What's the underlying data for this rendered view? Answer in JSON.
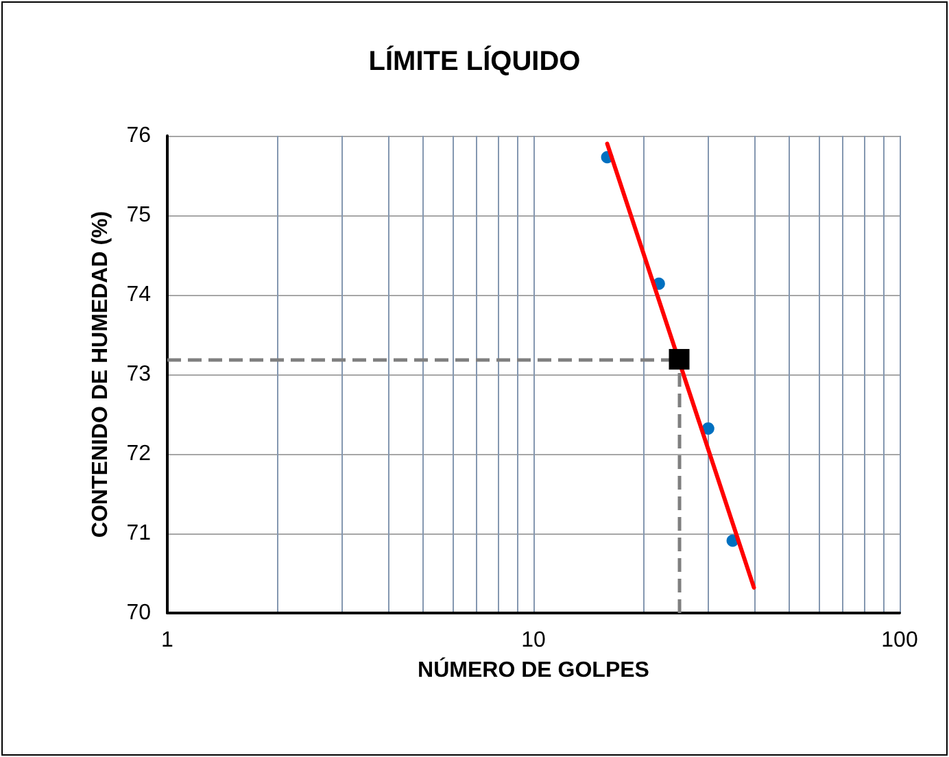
{
  "chart_data": {
    "type": "scatter",
    "title": "LÍMITE LÍQUIDO",
    "xlabel": "NÚMERO DE GOLPES",
    "ylabel": "CONTENIDO DE HUMEDAD (%)",
    "log": "x",
    "grid": true,
    "xlim": [
      1,
      100
    ],
    "xticks": [
      1,
      {
        "value": 2,
        "label": null
      },
      {
        "value": 3,
        "label": null
      },
      {
        "value": 4,
        "label": null
      },
      {
        "value": 5,
        "label": null
      },
      {
        "value": 6,
        "label": null
      },
      {
        "value": 7,
        "label": null
      },
      {
        "value": 8,
        "label": null
      },
      {
        "value": 9,
        "label": null
      },
      10,
      {
        "value": 20,
        "label": null
      },
      {
        "value": 30,
        "label": null
      },
      {
        "value": 40,
        "label": null
      },
      {
        "value": 50,
        "label": null
      },
      {
        "value": 60,
        "label": null
      },
      {
        "value": 70,
        "label": null
      },
      {
        "value": 80,
        "label": null
      },
      {
        "value": 90,
        "label": null
      },
      100
    ],
    "ylim": [
      70,
      76
    ],
    "yticks": [
      70,
      71,
      72,
      73,
      74,
      75,
      76
    ],
    "series": [
      {
        "color": "#0070c0",
        "marker": "circle",
        "x": [
          15.9,
          22,
          30,
          35
        ],
        "values": [
          75.73,
          74.14,
          72.32,
          70.91
        ]
      },
      {
        "type": "line",
        "color": "#ff0000",
        "marker": "none",
        "x": [
          15.9,
          40
        ],
        "values": [
          75.9,
          70.32
        ]
      },
      {
        "color": "#000000",
        "marker": "square",
        "x": [
          25
        ],
        "values": [
          73.19
        ]
      }
    ],
    "ref_lines": [
      {
        "axis": "x",
        "value": 25,
        "color": "#7f7f7f",
        "line_style": "dashed"
      },
      {
        "axis": "y",
        "value": 73.19,
        "color": "#7f7f7f",
        "line_style": "dashed"
      }
    ]
  }
}
